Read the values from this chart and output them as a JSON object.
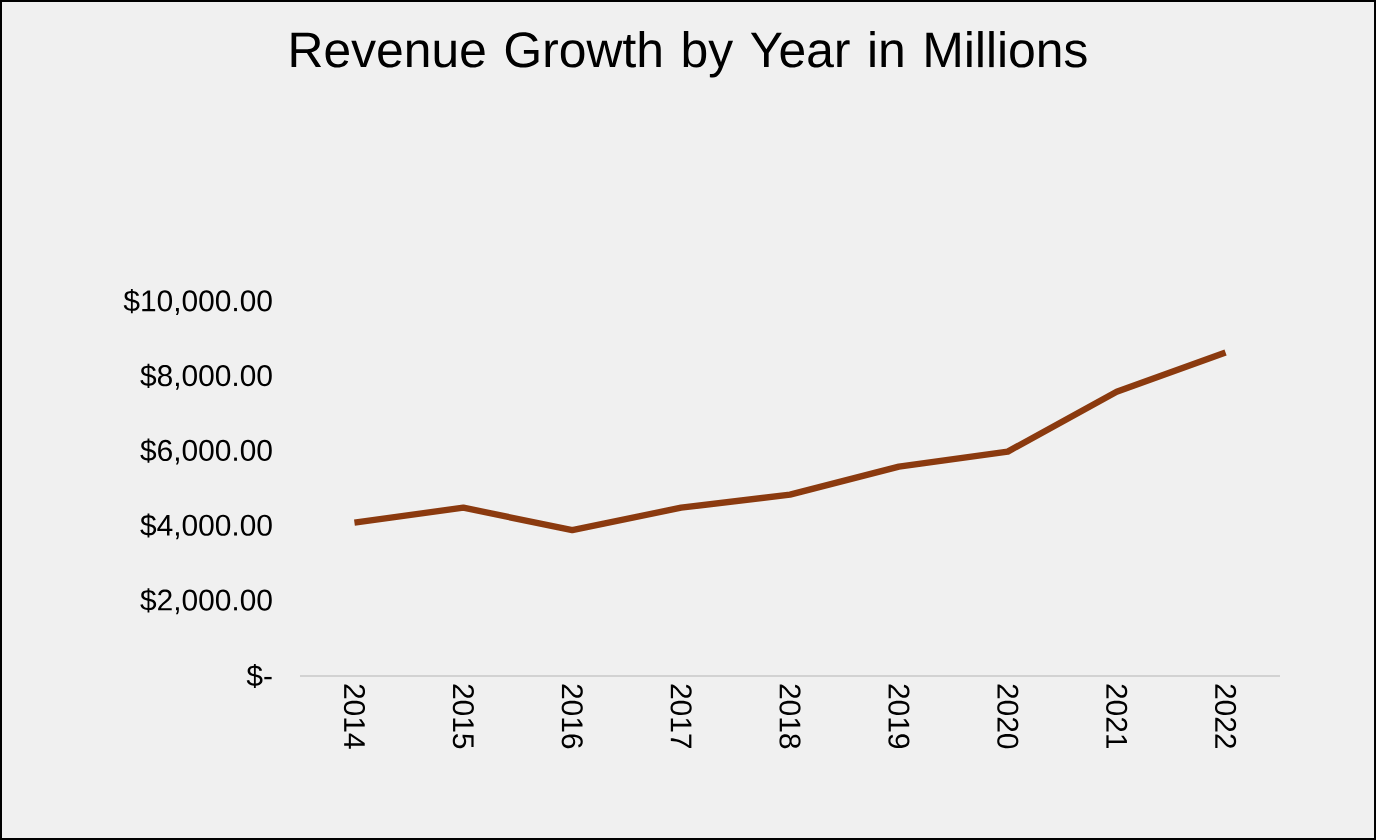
{
  "chart_data": {
    "type": "line",
    "title": "Revenue Growth by Year in Millions",
    "categories": [
      "2014",
      "2015",
      "2016",
      "2017",
      "2018",
      "2019",
      "2020",
      "2021",
      "2022"
    ],
    "series": [
      {
        "color": "#8b3a0f",
        "values": [
          4100,
          4500,
          3900,
          4500,
          4850,
          5600,
          6000,
          7600,
          8650
        ]
      }
    ],
    "ylim": [
      0,
      10000
    ],
    "yticks": [
      {
        "value": 0,
        "label": "$-"
      },
      {
        "value": 2000,
        "label": "$2,000.00"
      },
      {
        "value": 4000,
        "label": "$4,000.00"
      },
      {
        "value": 6000,
        "label": "$6,000.00"
      },
      {
        "value": 8000,
        "label": "$8,000.00"
      },
      {
        "value": 10000,
        "label": "$10,000.00"
      }
    ]
  }
}
